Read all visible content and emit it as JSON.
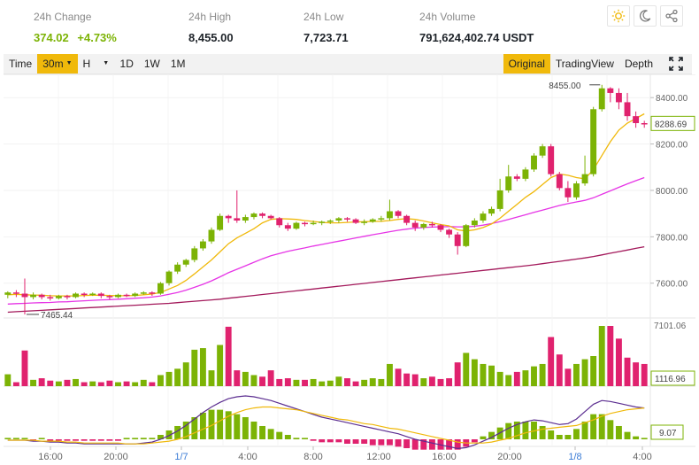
{
  "stats": [
    {
      "label": "24h Change",
      "value": "374.02",
      "extra": "+4.73%"
    },
    {
      "label": "24h High",
      "value": "8,455.00"
    },
    {
      "label": "24h Low",
      "value": "7,723.71"
    },
    {
      "label": "24h Volume",
      "value": "791,624,402.74 USDT"
    }
  ],
  "header_icons": [
    "sun-icon",
    "moon-icon",
    "share-icon"
  ],
  "toolbar": {
    "time_label": "Time",
    "interval_selected": "30m",
    "hour_select": "H",
    "intervals": [
      "1D",
      "1W",
      "1M"
    ],
    "views": [
      "Original",
      "TradingView",
      "Depth"
    ],
    "active_view": "Original"
  },
  "colors": {
    "up": "#7cb305",
    "down": "#e0226e",
    "ma_fast": "#f0b90b",
    "ma_mid": "#e635e6",
    "ma_slow": "#a3195b",
    "macd_dif": "#5b2d90",
    "macd_dea": "#f0b90b"
  },
  "chart_data": {
    "type": "candlestick",
    "interval": "30m",
    "x_tick_labels": [
      "16:00",
      "20:00",
      "1/7",
      "4:00",
      "8:00",
      "12:00",
      "16:00",
      "20:00",
      "1/8",
      "4:00"
    ],
    "price_axis_ticks": [
      7600,
      7800,
      8000,
      8200,
      8400
    ],
    "price_ylim": [
      7450,
      8500
    ],
    "current_price": "8288.69",
    "high_marker": "8455.00",
    "low_marker": "7465.44",
    "volume_max_label": "7101.06",
    "volume_current_label": "1116.96",
    "macd_current_label": "9.07",
    "candles": [
      [
        7550,
        7560,
        7535,
        7565
      ],
      [
        7560,
        7555,
        7540,
        7570
      ],
      [
        7555,
        7540,
        7465,
        7620
      ],
      [
        7540,
        7550,
        7530,
        7560
      ],
      [
        7550,
        7540,
        7530,
        7555
      ],
      [
        7540,
        7535,
        7525,
        7550
      ],
      [
        7535,
        7545,
        7530,
        7550
      ],
      [
        7545,
        7540,
        7530,
        7550
      ],
      [
        7540,
        7555,
        7535,
        7560
      ],
      [
        7555,
        7550,
        7540,
        7560
      ],
      [
        7550,
        7555,
        7545,
        7560
      ],
      [
        7555,
        7545,
        7535,
        7560
      ],
      [
        7545,
        7540,
        7530,
        7550
      ],
      [
        7540,
        7550,
        7535,
        7555
      ],
      [
        7550,
        7545,
        7540,
        7555
      ],
      [
        7545,
        7555,
        7540,
        7560
      ],
      [
        7555,
        7560,
        7550,
        7565
      ],
      [
        7560,
        7555,
        7545,
        7565
      ],
      [
        7555,
        7600,
        7550,
        7605
      ],
      [
        7600,
        7650,
        7590,
        7655
      ],
      [
        7650,
        7680,
        7640,
        7690
      ],
      [
        7680,
        7700,
        7670,
        7705
      ],
      [
        7700,
        7750,
        7690,
        7760
      ],
      [
        7750,
        7780,
        7740,
        7790
      ],
      [
        7780,
        7830,
        7770,
        7840
      ],
      [
        7830,
        7890,
        7825,
        7900
      ],
      [
        7890,
        7880,
        7860,
        7895
      ],
      [
        7880,
        7870,
        7860,
        8000
      ],
      [
        7870,
        7885,
        7860,
        7895
      ],
      [
        7885,
        7900,
        7875,
        7905
      ],
      [
        7900,
        7890,
        7880,
        7905
      ],
      [
        7890,
        7880,
        7875,
        7895
      ],
      [
        7880,
        7850,
        7840,
        7885
      ],
      [
        7850,
        7835,
        7825,
        7860
      ],
      [
        7835,
        7860,
        7830,
        7865
      ],
      [
        7860,
        7855,
        7845,
        7865
      ],
      [
        7855,
        7860,
        7850,
        7870
      ],
      [
        7860,
        7865,
        7850,
        7870
      ],
      [
        7865,
        7870,
        7855,
        7875
      ],
      [
        7870,
        7880,
        7860,
        7885
      ],
      [
        7880,
        7875,
        7865,
        7885
      ],
      [
        7875,
        7860,
        7855,
        7880
      ],
      [
        7860,
        7865,
        7850,
        7875
      ],
      [
        7865,
        7875,
        7860,
        7880
      ],
      [
        7875,
        7880,
        7865,
        7890
      ],
      [
        7880,
        7910,
        7870,
        7960
      ],
      [
        7910,
        7890,
        7880,
        7915
      ],
      [
        7890,
        7860,
        7850,
        7895
      ],
      [
        7860,
        7840,
        7825,
        7870
      ],
      [
        7840,
        7855,
        7830,
        7860
      ],
      [
        7855,
        7850,
        7840,
        7865
      ],
      [
        7850,
        7830,
        7820,
        7855
      ],
      [
        7830,
        7810,
        7795,
        7835
      ],
      [
        7810,
        7760,
        7723,
        7820
      ],
      [
        7760,
        7850,
        7755,
        7855
      ],
      [
        7850,
        7870,
        7840,
        7880
      ],
      [
        7870,
        7900,
        7860,
        7910
      ],
      [
        7900,
        7920,
        7890,
        7930
      ],
      [
        7920,
        8000,
        7910,
        8050
      ],
      [
        8000,
        8060,
        7990,
        8110
      ],
      [
        8060,
        8050,
        8040,
        8070
      ],
      [
        8050,
        8090,
        8040,
        8100
      ],
      [
        8090,
        8150,
        8080,
        8160
      ],
      [
        8150,
        8190,
        8140,
        8200
      ],
      [
        8190,
        8070,
        8060,
        8200
      ],
      [
        8070,
        8010,
        8000,
        8080
      ],
      [
        8010,
        7970,
        7950,
        8040
      ],
      [
        7970,
        8030,
        7960,
        8040
      ],
      [
        8030,
        8070,
        8020,
        8150
      ],
      [
        8070,
        8350,
        8060,
        8360
      ],
      [
        8350,
        8440,
        8340,
        8455
      ],
      [
        8440,
        8420,
        8380,
        8445
      ],
      [
        8420,
        8380,
        8350,
        8440
      ],
      [
        8380,
        8320,
        8300,
        8420
      ],
      [
        8320,
        8290,
        8270,
        8340
      ],
      [
        8290,
        8288.69,
        8270,
        8300
      ]
    ],
    "ma_fast": [
      7550,
      7552,
      7550,
      7549,
      7548,
      7546,
      7545,
      7545,
      7545,
      7547,
      7548,
      7548,
      7547,
      7546,
      7546,
      7547,
      7550,
      7553,
      7560,
      7575,
      7590,
      7612,
      7640,
      7670,
      7700,
      7735,
      7770,
      7795,
      7815,
      7835,
      7860,
      7875,
      7878,
      7877,
      7875,
      7870,
      7866,
      7862,
      7860,
      7860,
      7862,
      7864,
      7865,
      7866,
      7867,
      7870,
      7875,
      7878,
      7875,
      7868,
      7860,
      7853,
      7847,
      7830,
      7825,
      7830,
      7840,
      7855,
      7880,
      7910,
      7940,
      7970,
      7995,
      8025,
      8055,
      8070,
      8065,
      8055,
      8050,
      8090,
      8150,
      8210,
      8260,
      8290,
      8310,
      8330
    ],
    "ma_mid": [
      7510,
      7512,
      7513,
      7515,
      7516,
      7517,
      7519,
      7520,
      7522,
      7524,
      7526,
      7528,
      7529,
      7531,
      7533,
      7535,
      7537,
      7540,
      7545,
      7552,
      7560,
      7570,
      7582,
      7595,
      7610,
      7627,
      7645,
      7660,
      7675,
      7690,
      7705,
      7718,
      7728,
      7737,
      7745,
      7752,
      7760,
      7767,
      7774,
      7781,
      7788,
      7795,
      7802,
      7809,
      7815,
      7822,
      7828,
      7833,
      7837,
      7840,
      7842,
      7843,
      7844,
      7843,
      7843,
      7845,
      7850,
      7857,
      7865,
      7875,
      7885,
      7895,
      7905,
      7915,
      7925,
      7935,
      7943,
      7950,
      7957,
      7968,
      7983,
      7998,
      8013,
      8028,
      8042,
      8055
    ],
    "ma_slow": [
      7475,
      7477,
      7479,
      7481,
      7483,
      7485,
      7487,
      7489,
      7491,
      7493,
      7495,
      7497,
      7499,
      7501,
      7503,
      7505,
      7507,
      7509,
      7511,
      7513,
      7516,
      7519,
      7522,
      7525,
      7528,
      7531,
      7535,
      7539,
      7543,
      7547,
      7551,
      7555,
      7559,
      7563,
      7567,
      7571,
      7575,
      7579,
      7583,
      7587,
      7591,
      7595,
      7599,
      7603,
      7607,
      7611,
      7615,
      7619,
      7623,
      7627,
      7631,
      7635,
      7639,
      7643,
      7647,
      7651,
      7655,
      7659,
      7663,
      7667,
      7671,
      7675,
      7679,
      7684,
      7689,
      7694,
      7699,
      7704,
      7709,
      7715,
      7722,
      7729,
      7736,
      7743,
      7750,
      7757
    ],
    "volumes": [
      15,
      5,
      45,
      8,
      10,
      7,
      6,
      8,
      9,
      5,
      6,
      5,
      7,
      5,
      6,
      5,
      8,
      5,
      14,
      18,
      22,
      30,
      46,
      48,
      20,
      52,
      75,
      20,
      18,
      14,
      12,
      20,
      9,
      10,
      8,
      8,
      9,
      6,
      7,
      12,
      10,
      6,
      8,
      10,
      9,
      28,
      22,
      16,
      15,
      10,
      12,
      9,
      10,
      30,
      42,
      34,
      28,
      26,
      18,
      14,
      18,
      20,
      25,
      28,
      62,
      40,
      22,
      28,
      34,
      38,
      76,
      76,
      60,
      36,
      30,
      28
    ],
    "macd_dif": [
      -1,
      -1,
      -1,
      -2,
      -2,
      -3,
      -3,
      -4,
      -4,
      -5,
      -5,
      -5,
      -5,
      -5,
      -5,
      -5,
      -4,
      -3,
      0,
      4,
      9,
      15,
      22,
      29,
      35,
      40,
      44,
      46,
      47,
      46,
      44,
      42,
      39,
      36,
      33,
      30,
      27,
      24,
      22,
      20,
      18,
      16,
      14,
      12,
      10,
      8,
      6,
      3,
      0,
      -2,
      -4,
      -6,
      -8,
      -10,
      -9,
      -6,
      -2,
      2,
      7,
      12,
      16,
      19,
      21,
      20,
      18,
      16,
      17,
      22,
      30,
      38,
      42,
      41,
      39,
      37,
      35,
      34
    ],
    "macd_dea": [
      -1,
      -1,
      -1,
      -1,
      -2,
      -2,
      -2,
      -3,
      -3,
      -4,
      -4,
      -4,
      -4,
      -4,
      -5,
      -5,
      -5,
      -4,
      -3,
      -2,
      0,
      3,
      7,
      11,
      15,
      20,
      25,
      29,
      32,
      34,
      35,
      35,
      34,
      33,
      32,
      30,
      28,
      26,
      24,
      22,
      21,
      19,
      17,
      16,
      14,
      12,
      11,
      9,
      7,
      5,
      3,
      1,
      -1,
      -3,
      -4,
      -4,
      -4,
      -3,
      -1,
      1,
      4,
      7,
      9,
      11,
      12,
      13,
      14,
      15,
      18,
      21,
      25,
      28,
      30,
      32,
      33,
      34
    ]
  }
}
